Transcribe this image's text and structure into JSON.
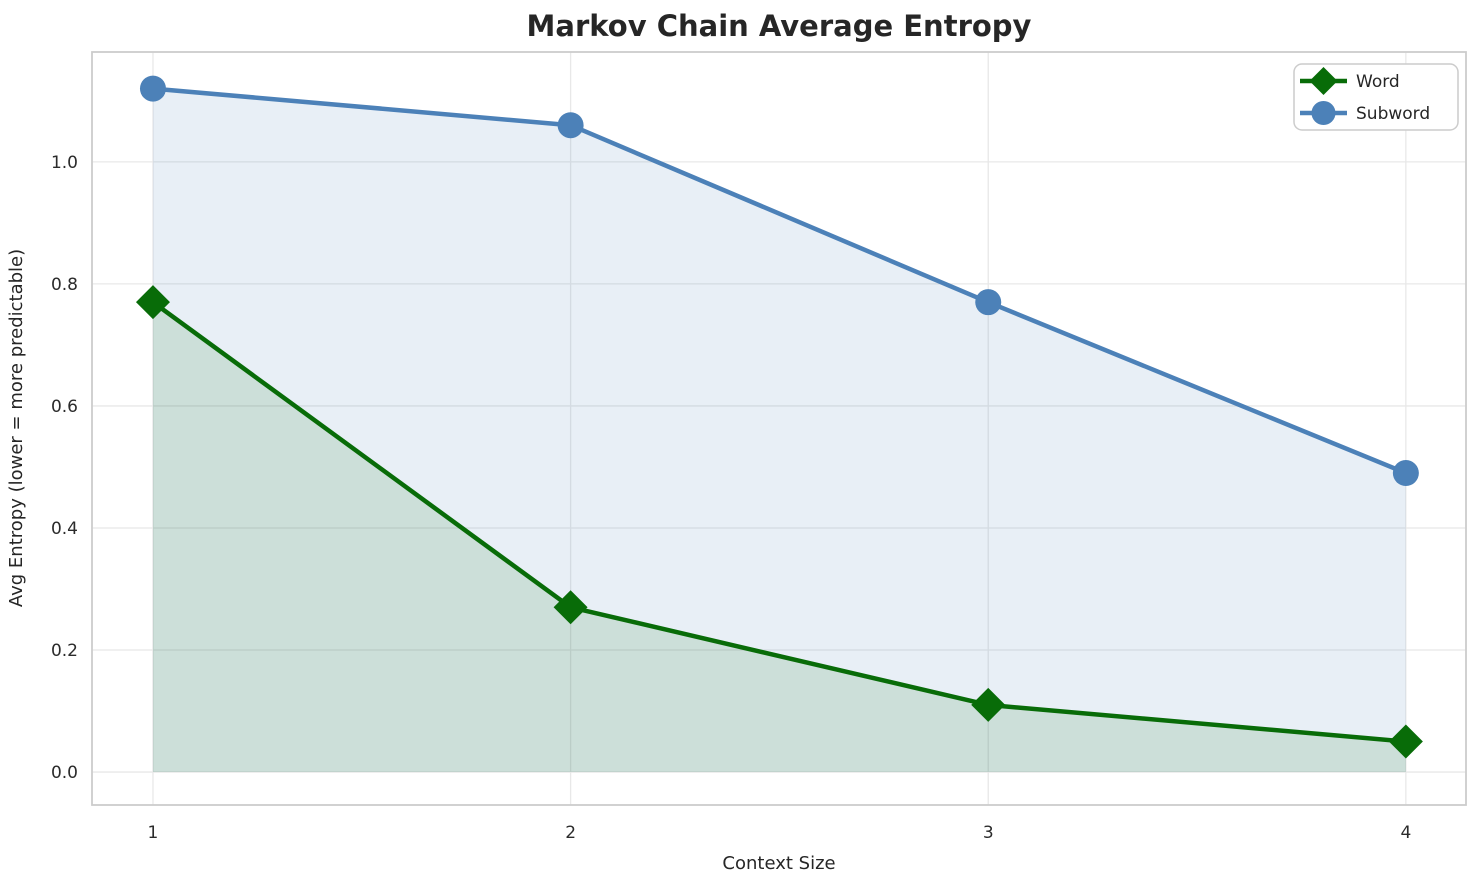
{
  "chart_data": {
    "type": "line",
    "title": "Markov Chain Average Entropy",
    "xlabel": "Context Size",
    "ylabel": "Avg Entropy (lower = more predictable)",
    "x": [
      1,
      2,
      3,
      4
    ],
    "series": [
      {
        "name": "Word",
        "values": [
          0.77,
          0.27,
          0.11,
          0.05
        ],
        "color": "#086C08",
        "fill_color": "rgba(8,108,8,0.12)",
        "marker": "diamond"
      },
      {
        "name": "Subword",
        "values": [
          1.12,
          1.06,
          0.77,
          0.49
        ],
        "color": "#4C81B8",
        "fill_color": "rgba(76,129,184,0.13)",
        "marker": "circle"
      }
    ],
    "x_ticks": [
      1,
      2,
      3,
      4
    ],
    "x_tick_labels": [
      "1",
      "2",
      "3",
      "4"
    ],
    "y_ticks": [
      0.0,
      0.2,
      0.4,
      0.6,
      0.8,
      1.0
    ],
    "y_tick_labels": [
      "0.0",
      "0.2",
      "0.4",
      "0.6",
      "0.8",
      "1.0"
    ],
    "xlim": [
      0.854,
      4.144
    ],
    "ylim": [
      -0.054,
      1.18
    ],
    "grid": true,
    "legend_position": "upper right",
    "colors": {
      "text": "#262626",
      "grid": "#E8E8E8",
      "spine": "#CCCCCC",
      "background": "#FFFFFF"
    }
  }
}
